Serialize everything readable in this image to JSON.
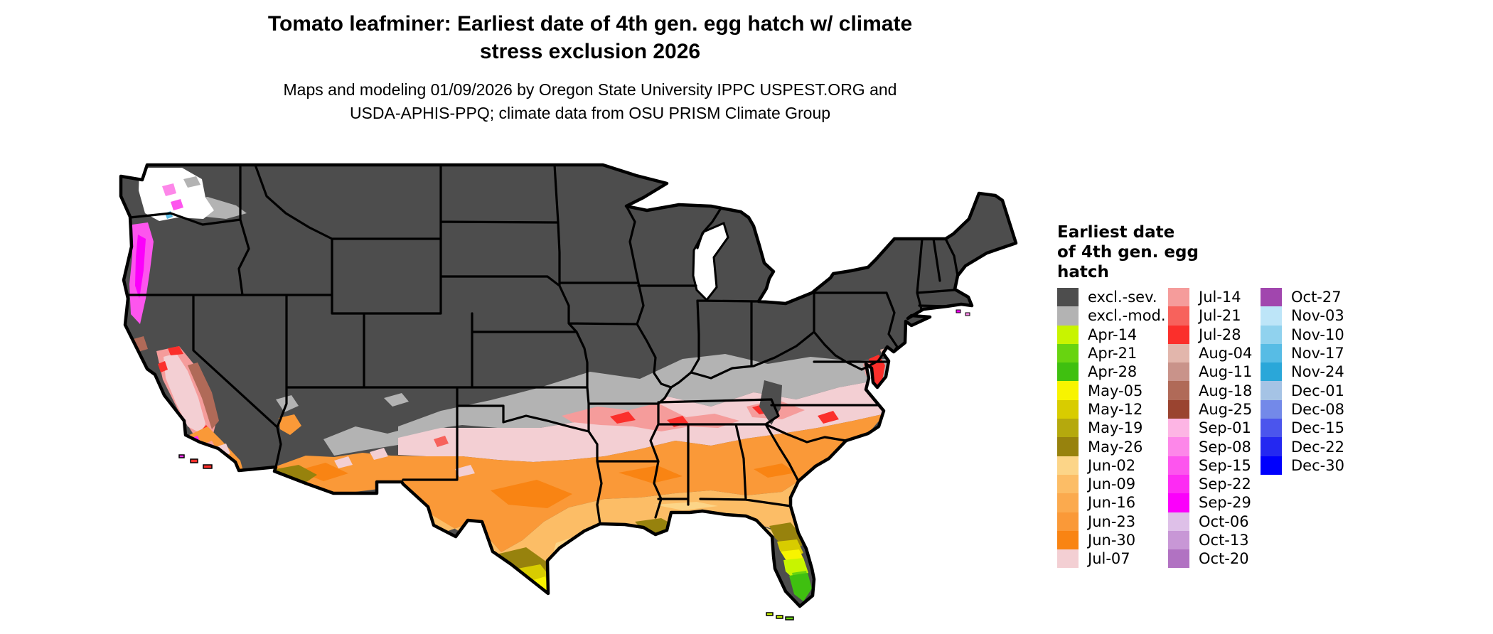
{
  "title": {
    "line1": "Tomato leafminer: Earliest date of 4th gen. egg hatch w/ climate",
    "line2": "stress exclusion 2026"
  },
  "subtitle": {
    "line1": "Maps and modeling 01/09/2026 by Oregon State University IPPC USPEST.ORG and",
    "line2": "USDA-APHIS-PPQ; climate data from OSU PRISM Climate Group"
  },
  "legend": {
    "title_lines": [
      "Earliest date",
      "of 4th gen. egg",
      "hatch"
    ],
    "columns": [
      [
        {
          "label": "excl.-sev.",
          "color_key": "excl_sev"
        },
        {
          "label": "excl.-mod.",
          "color_key": "excl_mod"
        },
        {
          "label": "Apr-14",
          "color_key": "apr14"
        },
        {
          "label": "Apr-21",
          "color_key": "apr21"
        },
        {
          "label": "Apr-28",
          "color_key": "apr28"
        },
        {
          "label": "May-05",
          "color_key": "may05"
        },
        {
          "label": "May-12",
          "color_key": "may12"
        },
        {
          "label": "May-19",
          "color_key": "may19"
        },
        {
          "label": "May-26",
          "color_key": "may26"
        },
        {
          "label": "Jun-02",
          "color_key": "jun02"
        },
        {
          "label": "Jun-09",
          "color_key": "jun09"
        },
        {
          "label": "Jun-16",
          "color_key": "jun16"
        },
        {
          "label": "Jun-23",
          "color_key": "jun23"
        },
        {
          "label": "Jun-30",
          "color_key": "jun30"
        },
        {
          "label": "Jul-07",
          "color_key": "jul07"
        }
      ],
      [
        {
          "label": "Jul-14",
          "color_key": "jul14"
        },
        {
          "label": "Jul-21",
          "color_key": "jul21"
        },
        {
          "label": "Jul-28",
          "color_key": "jul28"
        },
        {
          "label": "Aug-04",
          "color_key": "aug04"
        },
        {
          "label": "Aug-11",
          "color_key": "aug11"
        },
        {
          "label": "Aug-18",
          "color_key": "aug18"
        },
        {
          "label": "Aug-25",
          "color_key": "aug25"
        },
        {
          "label": "Sep-01",
          "color_key": "sep01"
        },
        {
          "label": "Sep-08",
          "color_key": "sep08"
        },
        {
          "label": "Sep-15",
          "color_key": "sep15"
        },
        {
          "label": "Sep-22",
          "color_key": "sep22"
        },
        {
          "label": "Sep-29",
          "color_key": "sep29"
        },
        {
          "label": "Oct-06",
          "color_key": "oct06"
        },
        {
          "label": "Oct-13",
          "color_key": "oct13"
        },
        {
          "label": "Oct-20",
          "color_key": "oct20"
        }
      ],
      [
        {
          "label": "Oct-27",
          "color_key": "oct27"
        },
        {
          "label": "Nov-03",
          "color_key": "nov03"
        },
        {
          "label": "Nov-10",
          "color_key": "nov10"
        },
        {
          "label": "Nov-17",
          "color_key": "nov17"
        },
        {
          "label": "Nov-24",
          "color_key": "nov24"
        },
        {
          "label": "Dec-01",
          "color_key": "dec01"
        },
        {
          "label": "Dec-08",
          "color_key": "dec08"
        },
        {
          "label": "Dec-15",
          "color_key": "dec15"
        },
        {
          "label": "Dec-22",
          "color_key": "dec22"
        },
        {
          "label": "Dec-30",
          "color_key": "dec30"
        }
      ]
    ]
  },
  "palette": {
    "excl_sev": "#4d4d4d",
    "excl_mod": "#b3b3b3",
    "apr14": "#c8f400",
    "apr21": "#68d410",
    "apr28": "#3fc010",
    "may05": "#f8f400",
    "may12": "#d8cc00",
    "may19": "#b5a90d",
    "may26": "#97820d",
    "jun02": "#fcd588",
    "jun09": "#fcbd66",
    "jun16": "#fbaa4e",
    "jun23": "#fa9938",
    "jun30": "#f98413",
    "jul07": "#f3cfd3",
    "jul14": "#f59c9b",
    "jul21": "#f7625c",
    "jul28": "#fb2f2b",
    "aug04": "#e2b6ac",
    "aug11": "#c9938a",
    "aug18": "#b06a58",
    "aug25": "#9a4430",
    "sep01": "#fdb5e4",
    "sep08": "#fd87e9",
    "sep15": "#fd55ee",
    "sep22": "#fd2bf3",
    "sep29": "#fb00fb",
    "oct06": "#dec0e8",
    "oct13": "#c897d6",
    "oct20": "#b172c2",
    "oct27": "#a146ae",
    "nov03": "#bde5f8",
    "nov10": "#90d2ee",
    "nov17": "#57bce5",
    "nov24": "#2aa7d9",
    "dec01": "#a5c3e5",
    "dec08": "#7389e9",
    "dec15": "#4b55ed",
    "dec22": "#2428f1",
    "dec30": "#0000fd",
    "water": "#ffffff",
    "border": "#000000"
  }
}
